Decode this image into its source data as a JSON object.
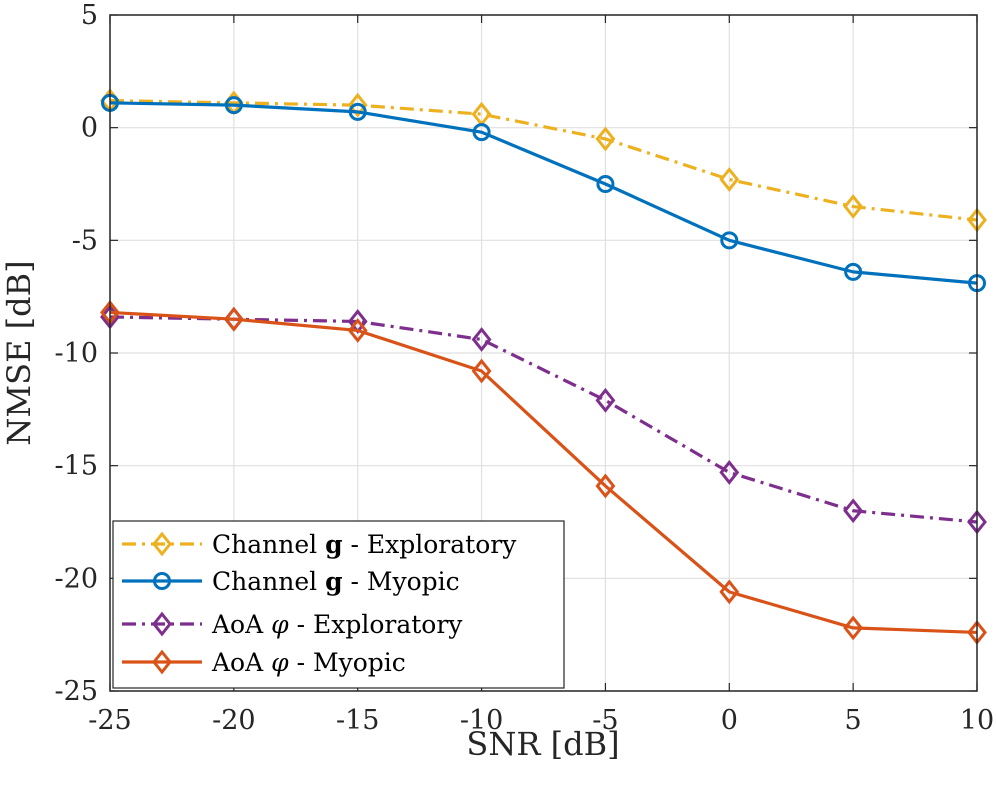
{
  "chart_data": {
    "type": "line",
    "xlabel": "SNR [dB]",
    "ylabel": "NMSE [dB]",
    "xlim": [
      -25,
      10
    ],
    "ylim": [
      -25,
      5
    ],
    "x": [
      -25,
      -20,
      -15,
      -10,
      -5,
      0,
      5,
      10
    ],
    "xticks": [
      "-25",
      "-20",
      "-15",
      "-10",
      "-5",
      "0",
      "5",
      "10"
    ],
    "yticks": [
      "5",
      "0",
      "-5",
      "-10",
      "-15",
      "-20",
      "-25"
    ],
    "grid": true,
    "legend_position": "bottom-left",
    "series": [
      {
        "name": "Channel g - Exploratory",
        "label_parts": [
          "Channel ",
          "g",
          " - Exploratory"
        ],
        "color": "#EDB120",
        "marker": "diamond",
        "line": "dashdot",
        "values": [
          1.2,
          1.1,
          1.0,
          0.6,
          -0.5,
          -2.3,
          -3.5,
          -4.1
        ]
      },
      {
        "name": "Channel g - Myopic",
        "label_parts": [
          "Channel ",
          "g",
          " - Myopic"
        ],
        "color": "#0072BD",
        "marker": "circle",
        "line": "solid",
        "values": [
          1.1,
          1.0,
          0.7,
          -0.2,
          -2.5,
          -5.0,
          -6.4,
          -6.9
        ]
      },
      {
        "name": "AoA φ - Exploratory",
        "label_parts": [
          "AoA ",
          "φ",
          " - Exploratory"
        ],
        "color": "#7E2F8E",
        "marker": "diamond",
        "line": "dashdot",
        "values": [
          -8.4,
          -8.5,
          -8.6,
          -9.4,
          -12.1,
          -15.3,
          -17.0,
          -17.5
        ]
      },
      {
        "name": "AoA φ - Myopic",
        "label_parts": [
          "AoA ",
          "φ",
          " - Myopic"
        ],
        "color": "#D95319",
        "marker": "diamond",
        "line": "solid",
        "values": [
          -8.2,
          -8.5,
          -9.0,
          -10.8,
          -15.9,
          -20.6,
          -22.2,
          -22.4
        ]
      }
    ]
  }
}
